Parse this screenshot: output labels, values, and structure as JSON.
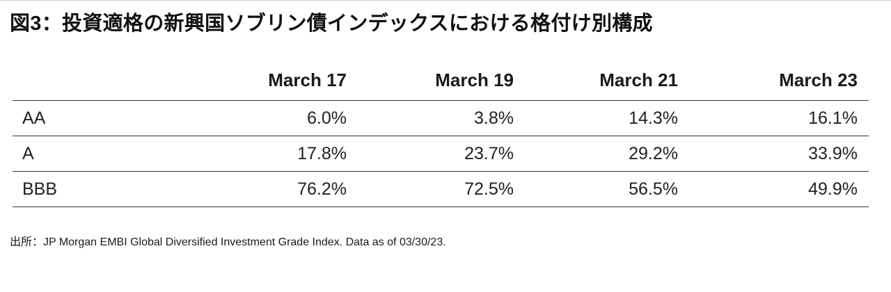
{
  "chart_data": {
    "type": "table",
    "title": "図3：投資適格の新興国ソブリン債インデックスにおける格付け別構成",
    "columns": [
      "",
      "March 17",
      "March 19",
      "March 21",
      "March 23"
    ],
    "rows": [
      {
        "label": "AA",
        "values": [
          "6.0%",
          "3.8%",
          "14.3%",
          "16.1%"
        ]
      },
      {
        "label": "A",
        "values": [
          "17.8%",
          "23.7%",
          "29.2%",
          "33.9%"
        ]
      },
      {
        "label": "BBB",
        "values": [
          "76.2%",
          "72.5%",
          "56.5%",
          "49.9%"
        ]
      }
    ],
    "source": "出所：JP Morgan EMBI Global Diversified Investment Grade Index. Data as of 03/30/23."
  }
}
